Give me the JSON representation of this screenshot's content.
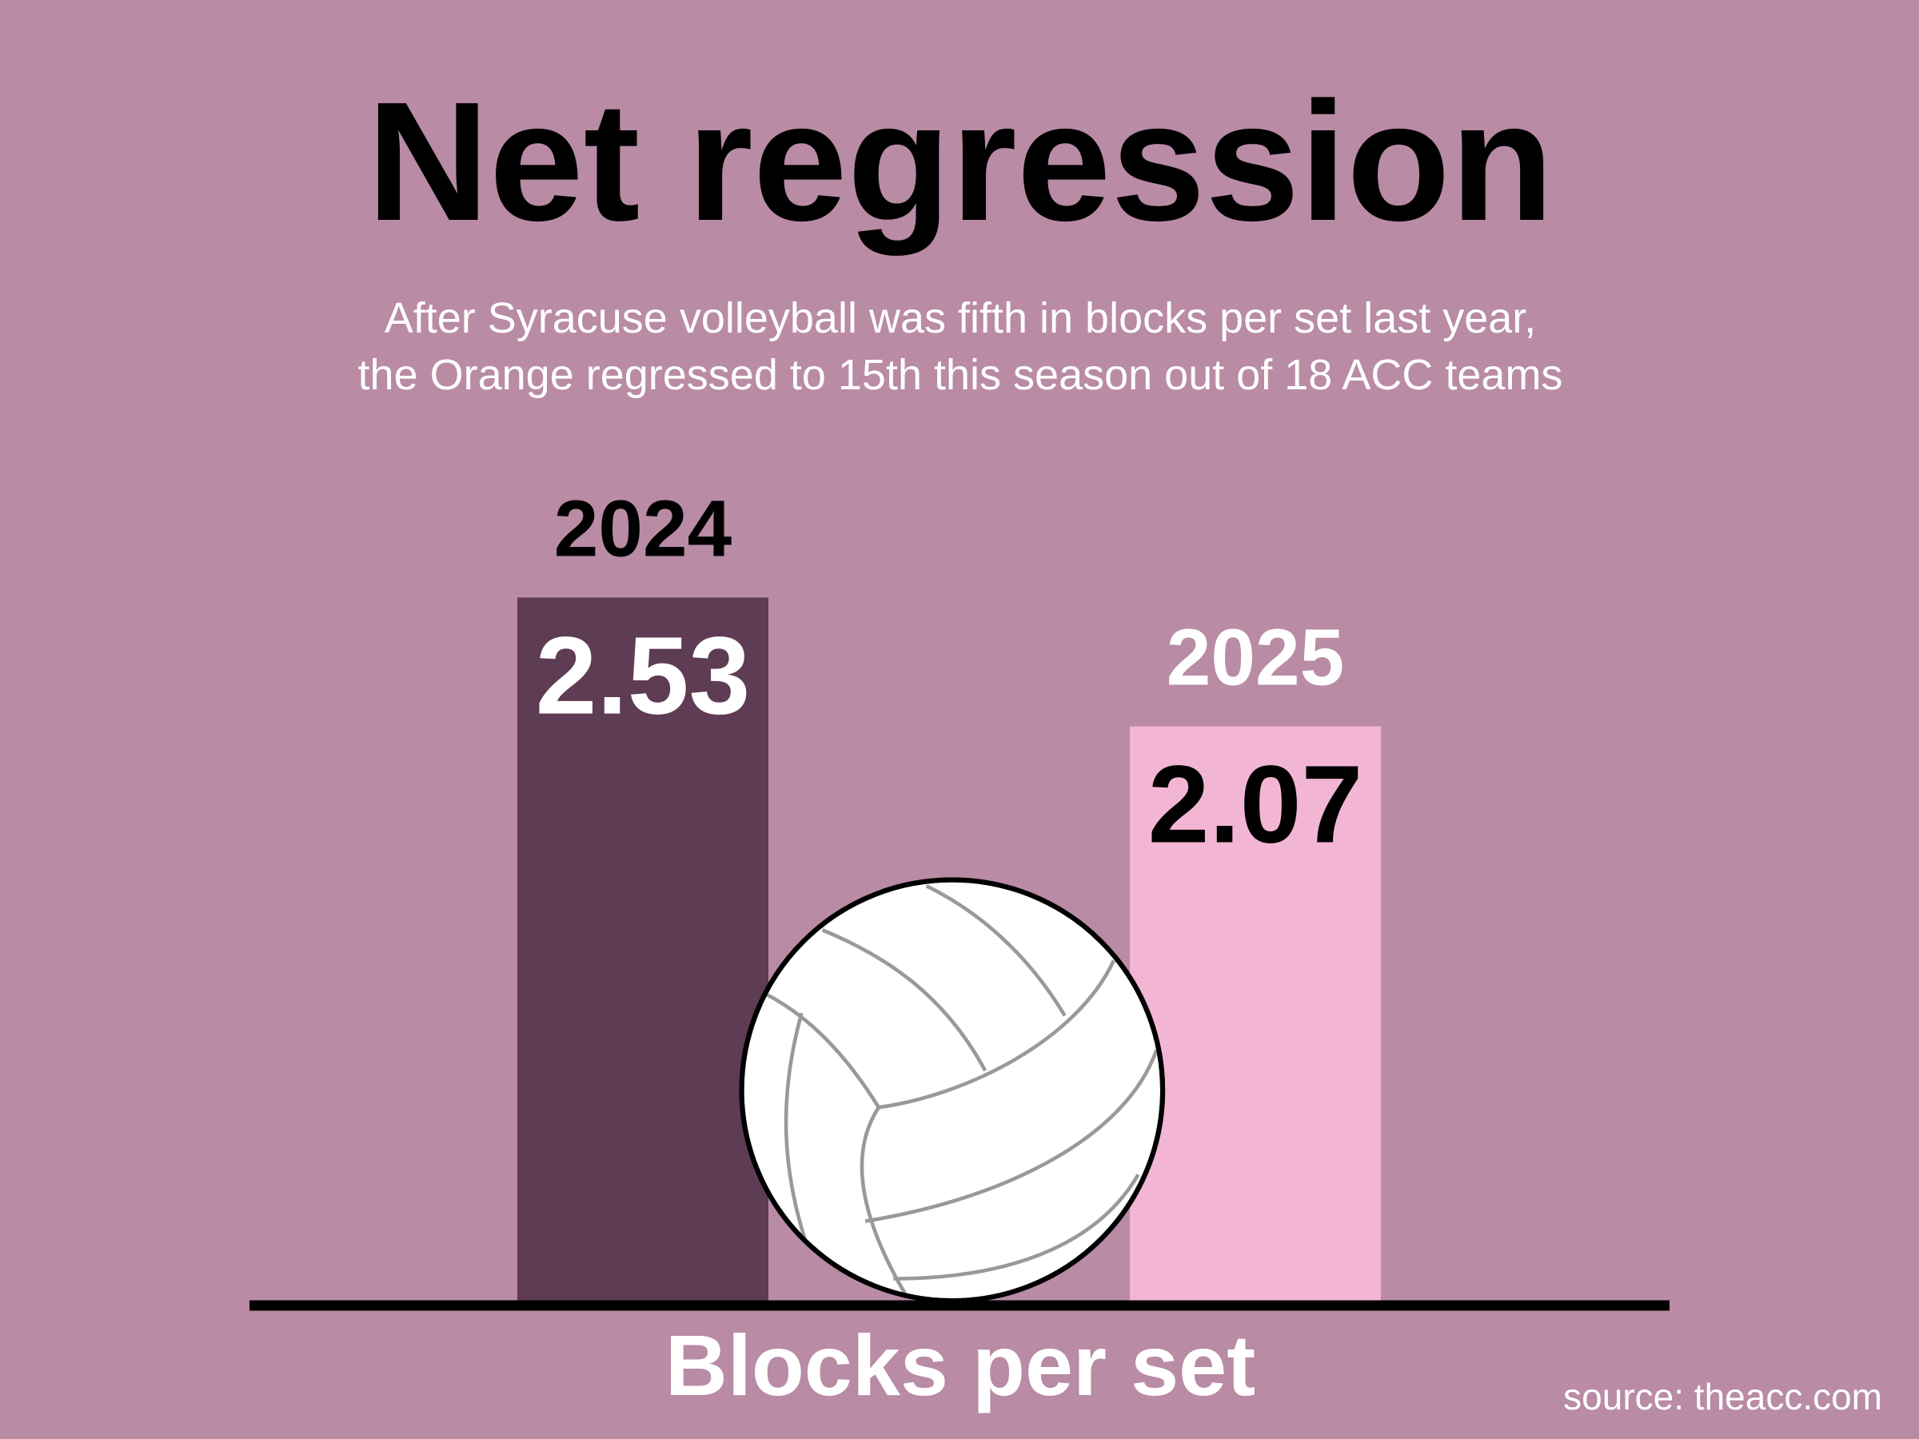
{
  "chart_data": {
    "type": "bar",
    "title": "Net regression",
    "subtitle": [
      "After Syracuse volleyball was fifth in blocks per set last year,",
      "the Orange regressed to 15th this season out of 18 ACC teams"
    ],
    "categories": [
      "2024",
      "2025"
    ],
    "series": [
      {
        "name": "Blocks per set",
        "colors": [
          "#5e3c53",
          "#f2b6d4"
        ],
        "values": [
          2.53,
          2.07
        ]
      }
    ],
    "x_label": "Blocks per set",
    "source": "source: theacc.com"
  }
}
